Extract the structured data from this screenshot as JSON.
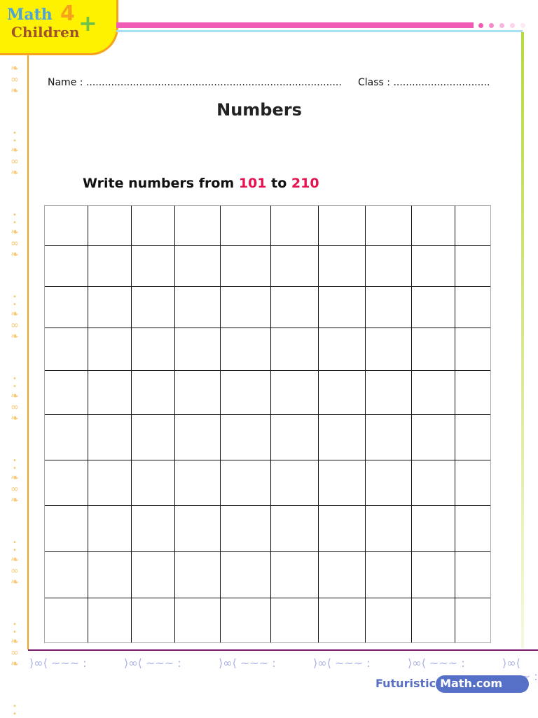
{
  "logo": {
    "line1": "Math",
    "line2": "Children",
    "four": "4",
    "plus": "+"
  },
  "colors": {
    "pink_bar": "#f25bb5",
    "accent_red": "#e8124f",
    "footer_blue": "#5570c6",
    "left_border": "#f7a21b",
    "right_border": "#b6d93a"
  },
  "header": {
    "name_label": "Name : ..................................................................................",
    "class_label": "Class : ..............................."
  },
  "title": "Numbers",
  "instruction": {
    "prefix": "Write numbers from ",
    "from": "101",
    "middle": " to ",
    "to": "210"
  },
  "grid": {
    "rows": 10,
    "columns": 10
  },
  "footer": {
    "brand_left": "Futuristic",
    "brand_right": "Math.com"
  }
}
